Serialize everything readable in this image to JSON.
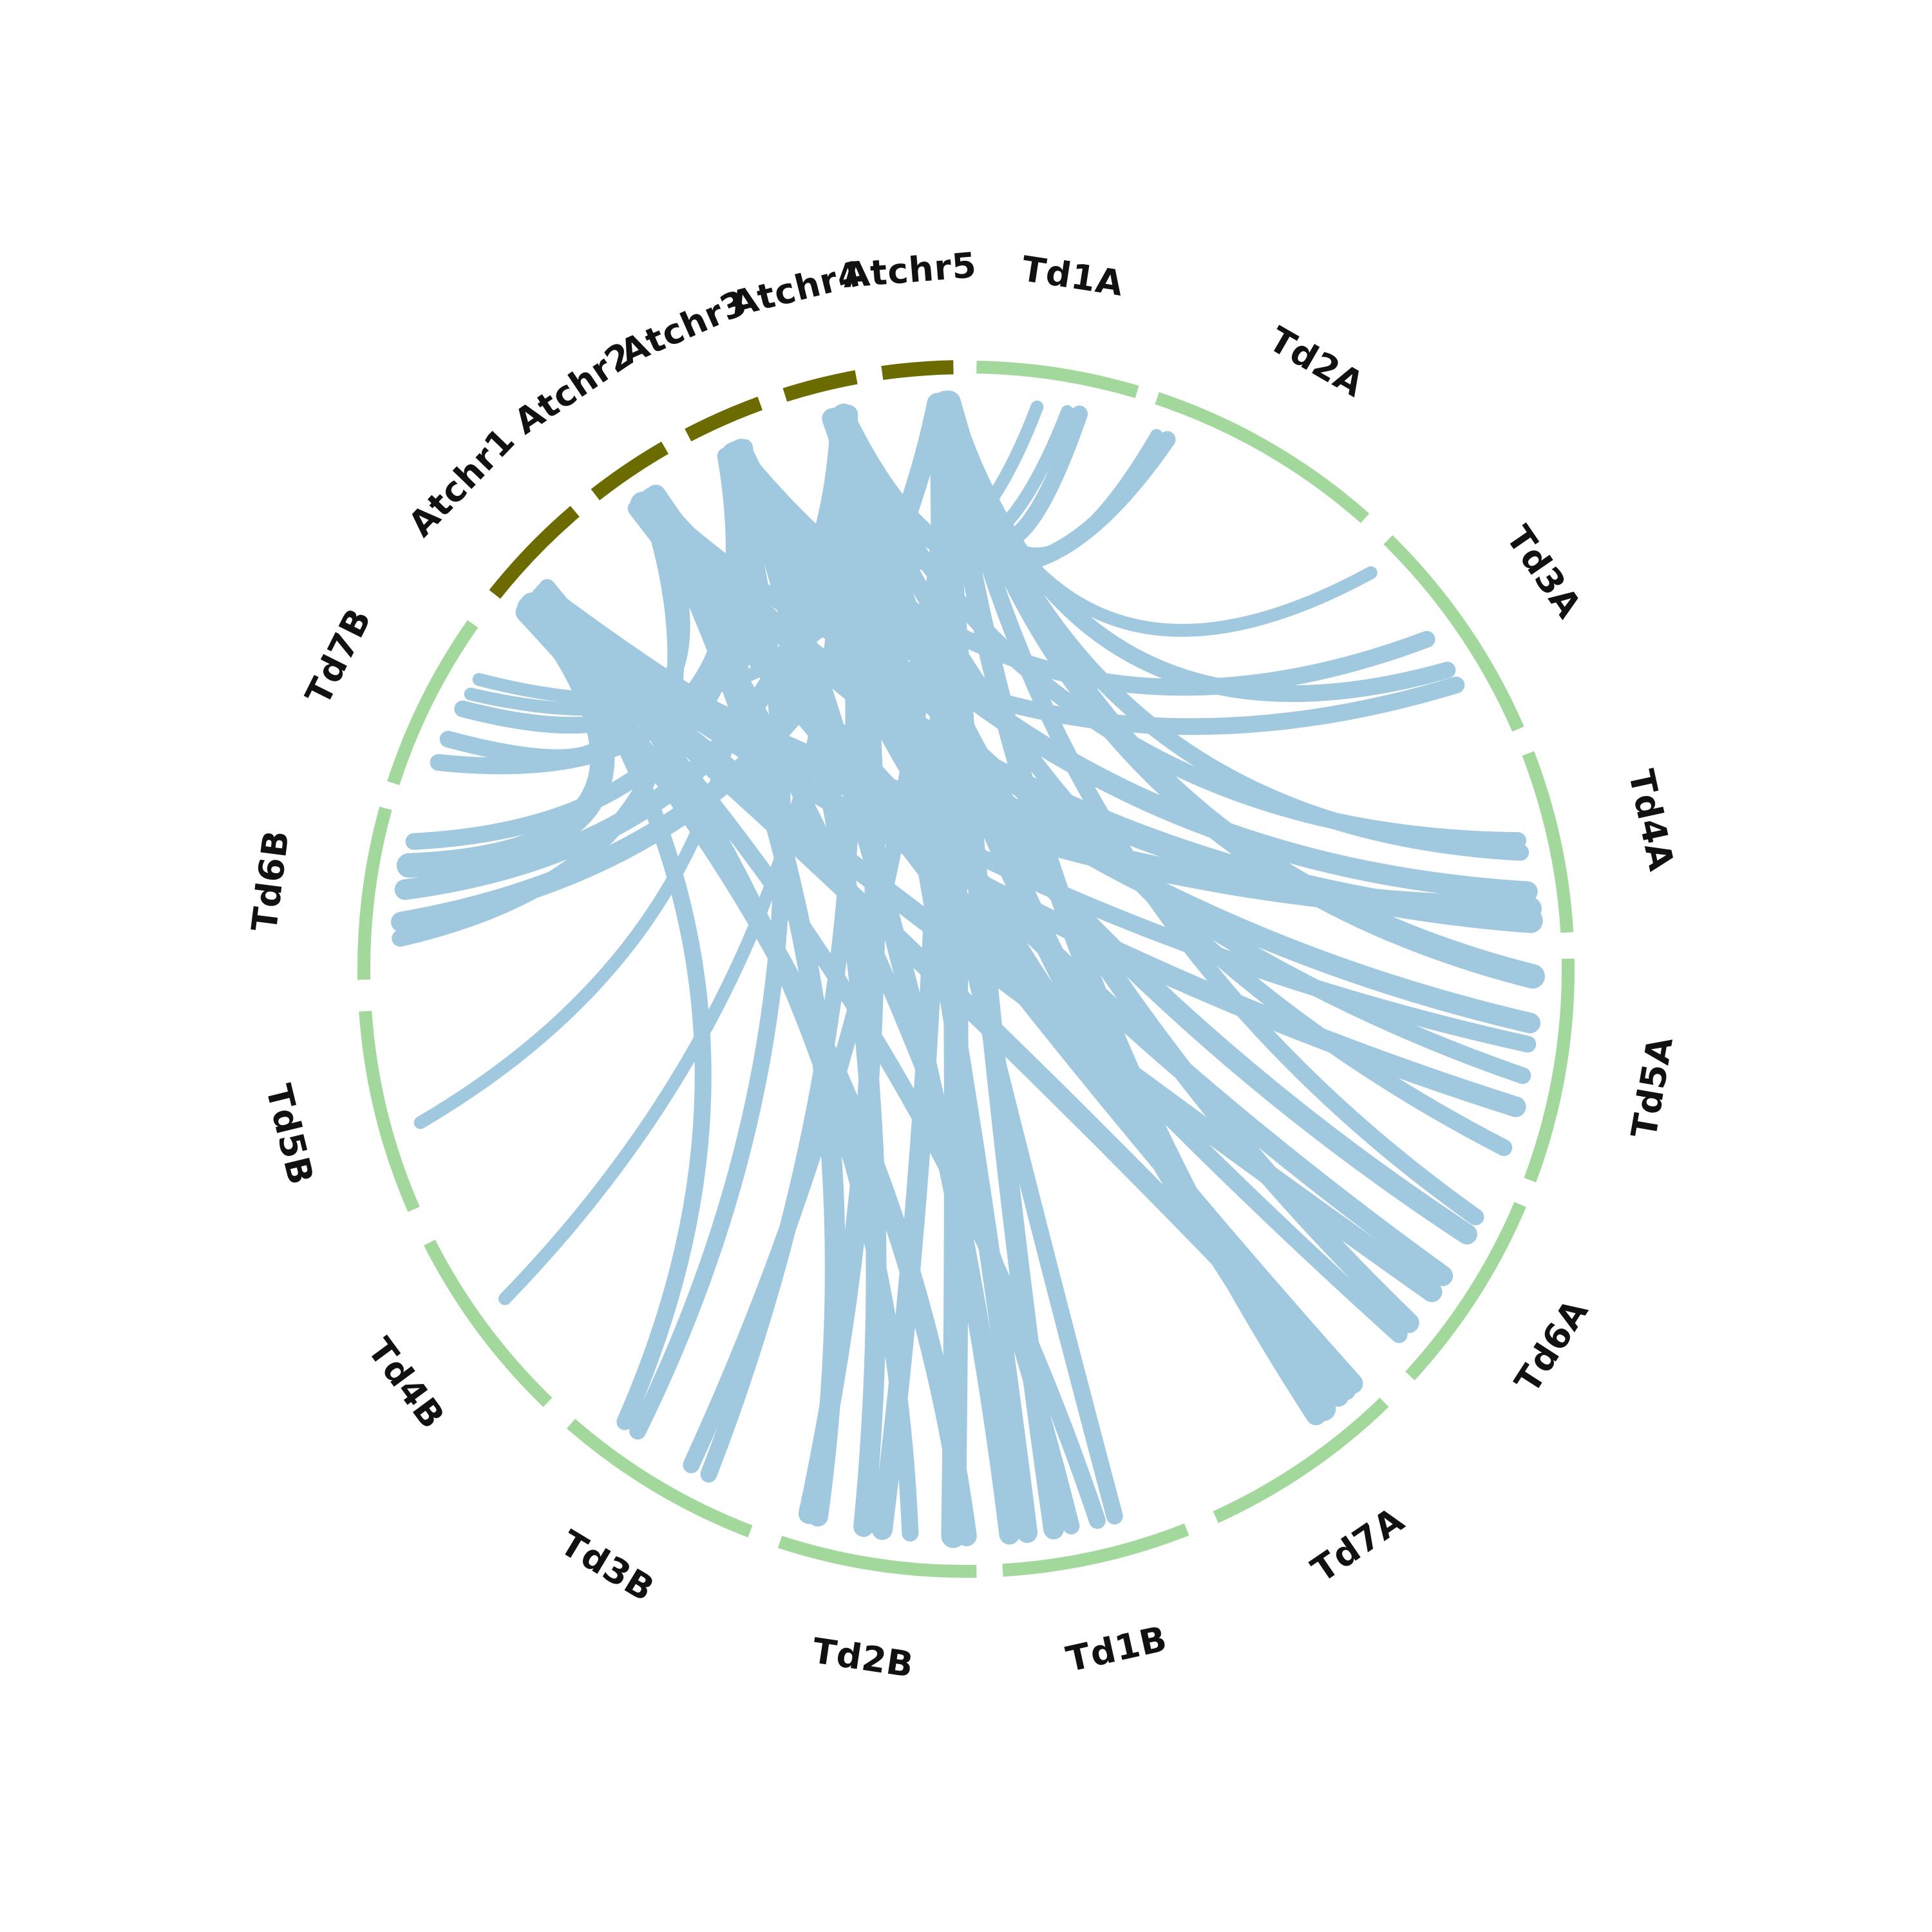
{
  "colors": {
    "at_track": "#6b6b00",
    "td_track": "#a3d89d",
    "link": "#a0c9e0",
    "label": "#111111"
  },
  "segments": [
    {
      "id": "Td1A",
      "label": "Td1A",
      "group": "td"
    },
    {
      "id": "Td2A",
      "label": "Td2A",
      "group": "td"
    },
    {
      "id": "Td3A",
      "label": "Td3A",
      "group": "td"
    },
    {
      "id": "Td4A",
      "label": "Td4A",
      "group": "td"
    },
    {
      "id": "Td5A",
      "label": "Td5A",
      "group": "td"
    },
    {
      "id": "Td6A",
      "label": "Td6A",
      "group": "td"
    },
    {
      "id": "Td7A",
      "label": "Td7A",
      "group": "td"
    },
    {
      "id": "Td1B",
      "label": "Td1B",
      "group": "td"
    },
    {
      "id": "Td2B",
      "label": "Td2B",
      "group": "td"
    },
    {
      "id": "Td3B",
      "label": "Td3B",
      "group": "td"
    },
    {
      "id": "Td4B",
      "label": "Td4B",
      "group": "td"
    },
    {
      "id": "Td5B",
      "label": "Td5B",
      "group": "td"
    },
    {
      "id": "Td6B",
      "label": "Td6B",
      "group": "td"
    },
    {
      "id": "Td7B",
      "label": "Td7B",
      "group": "td"
    },
    {
      "id": "Atchr1",
      "label": "Atchr1",
      "group": "at"
    },
    {
      "id": "Atchr2",
      "label": "Atchr2",
      "group": "at"
    },
    {
      "id": "Atchr3",
      "label": "Atchr3",
      "group": "at"
    },
    {
      "id": "Atchr4",
      "label": "Atchr4",
      "group": "at"
    },
    {
      "id": "Atchr5",
      "label": "Atchr5",
      "group": "at"
    }
  ],
  "links": [
    {
      "from": "Atchr5",
      "to": "Td1A",
      "f": 0.8,
      "t": 0.68,
      "w": 3
    },
    {
      "from": "Atchr5",
      "to": "Td2A",
      "f": 0.86,
      "t": 0.05,
      "w": 2
    },
    {
      "from": "Atchr5",
      "to": "Td3A",
      "f": 0.83,
      "t": 0.05,
      "w": 2
    },
    {
      "from": "Atchr5",
      "to": "Td4A",
      "f": 0.9,
      "t": 0.52,
      "w": 3
    },
    {
      "from": "Atchr5",
      "to": "Td5A",
      "f": 0.92,
      "t": 0.08,
      "w": 5
    },
    {
      "from": "Atchr5",
      "to": "Td6A",
      "f": 0.88,
      "t": 0.15,
      "w": 3
    },
    {
      "from": "Atchr5",
      "to": "Td7A",
      "f": 0.85,
      "t": 0.3,
      "w": 4
    },
    {
      "from": "Atchr5",
      "to": "Td1B",
      "f": 0.82,
      "t": 0.7,
      "w": 4
    },
    {
      "from": "Atchr5",
      "to": "Td2B",
      "f": 0.87,
      "t": 0.12,
      "w": 5
    },
    {
      "from": "Atchr5",
      "to": "Td3B",
      "f": 0.91,
      "t": 0.4,
      "w": 3
    },
    {
      "from": "Atchr5",
      "to": "Td7B",
      "f": 0.84,
      "t": 0.75,
      "w": 2
    },
    {
      "from": "Atchr5",
      "to": "Td3A",
      "f": 0.95,
      "t": 0.62,
      "w": 3
    },
    {
      "from": "Atchr4",
      "to": "Td1A",
      "f": 0.7,
      "t": 0.6,
      "w": 2
    },
    {
      "from": "Atchr4",
      "to": "Td2A",
      "f": 0.75,
      "t": 0.1,
      "w": 3
    },
    {
      "from": "Atchr4",
      "to": "Td4A",
      "f": 0.6,
      "t": 0.45,
      "w": 3
    },
    {
      "from": "Atchr4",
      "to": "Td5A",
      "f": 0.65,
      "t": 0.9,
      "w": 3
    },
    {
      "from": "Atchr4",
      "to": "Td6A",
      "f": 0.55,
      "t": 0.8,
      "w": 4
    },
    {
      "from": "Atchr4",
      "to": "Td7A",
      "f": 0.72,
      "t": 0.25,
      "w": 5
    },
    {
      "from": "Atchr4",
      "to": "Td1B",
      "f": 0.66,
      "t": 0.85,
      "w": 4
    },
    {
      "from": "Atchr4",
      "to": "Td2B",
      "f": 0.62,
      "t": 0.9,
      "w": 4
    },
    {
      "from": "Atchr4",
      "to": "Td3B",
      "f": 0.58,
      "t": 0.3,
      "w": 3
    },
    {
      "from": "Atchr4",
      "to": "Td4B",
      "f": 0.68,
      "t": 0.55,
      "w": 2
    },
    {
      "from": "Atchr3",
      "to": "Td3A",
      "f": 0.5,
      "t": 0.45,
      "w": 3
    },
    {
      "from": "Atchr3",
      "to": "Td4A",
      "f": 0.45,
      "t": 0.75,
      "w": 4
    },
    {
      "from": "Atchr3",
      "to": "Td5A",
      "f": 0.4,
      "t": 0.55,
      "w": 3
    },
    {
      "from": "Atchr3",
      "to": "Td6A",
      "f": 0.42,
      "t": 0.25,
      "w": 4
    },
    {
      "from": "Atchr3",
      "to": "Td7A",
      "f": 0.55,
      "t": 0.15,
      "w": 4
    },
    {
      "from": "Atchr3",
      "to": "Td1B",
      "f": 0.48,
      "t": 0.95,
      "w": 4
    },
    {
      "from": "Atchr3",
      "to": "Td2B",
      "f": 0.52,
      "t": 0.6,
      "w": 4
    },
    {
      "from": "Atchr3",
      "to": "Td3B",
      "f": 0.38,
      "t": 0.72,
      "w": 3
    },
    {
      "from": "Atchr3",
      "to": "Td5B",
      "f": 0.46,
      "t": 0.4,
      "w": 2
    },
    {
      "from": "Atchr2",
      "to": "Td3A",
      "f": 0.5,
      "t": 0.7,
      "w": 3
    },
    {
      "from": "Atchr2",
      "to": "Td4A",
      "f": 0.4,
      "t": 0.92,
      "w": 5
    },
    {
      "from": "Atchr2",
      "to": "Td5A",
      "f": 0.55,
      "t": 0.3,
      "w": 4
    },
    {
      "from": "Atchr2",
      "to": "Td6A",
      "f": 0.45,
      "t": 0.5,
      "w": 4
    },
    {
      "from": "Atchr2",
      "to": "Td7A",
      "f": 0.6,
      "t": 0.05,
      "w": 4
    },
    {
      "from": "Atchr2",
      "to": "Td1B",
      "f": 0.35,
      "t": 0.6,
      "w": 3
    },
    {
      "from": "Atchr2",
      "to": "Td2B",
      "f": 0.52,
      "t": 0.85,
      "w": 4
    },
    {
      "from": "Atchr2",
      "to": "Td6B",
      "f": 0.48,
      "t": 0.25,
      "w": 3
    },
    {
      "from": "Atchr1",
      "to": "Td4A",
      "f": 0.1,
      "t": 0.85,
      "w": 5
    },
    {
      "from": "Atchr1",
      "to": "Td5A",
      "f": 0.15,
      "t": 0.7,
      "w": 4
    },
    {
      "from": "Atchr1",
      "to": "Td6A",
      "f": 0.08,
      "t": 0.6,
      "w": 4
    },
    {
      "from": "Atchr1",
      "to": "Td7A",
      "f": 0.12,
      "t": 0.1,
      "w": 4
    },
    {
      "from": "Atchr1",
      "to": "Td1B",
      "f": 0.18,
      "t": 0.45,
      "w": 3
    },
    {
      "from": "Atchr1",
      "to": "Td2B",
      "f": 0.05,
      "t": 0.05,
      "w": 4
    },
    {
      "from": "Atchr1",
      "to": "Td3B",
      "f": 0.2,
      "t": 0.8,
      "w": 3
    },
    {
      "from": "Atchr1",
      "to": "Td6B",
      "f": 0.14,
      "t": 0.7,
      "w": 5
    },
    {
      "from": "Atchr1",
      "to": "Td7B",
      "f": 0.25,
      "t": 0.35,
      "w": 3
    },
    {
      "from": "Atchr5",
      "to": "Td6B",
      "f": 0.75,
      "t": 0.35,
      "w": 4
    },
    {
      "from": "Atchr4",
      "to": "Td6B",
      "f": 0.78,
      "t": 0.55,
      "w": 4
    },
    {
      "from": "Atchr3",
      "to": "Td6B",
      "f": 0.6,
      "t": 0.85,
      "w": 3
    },
    {
      "from": "Atchr2",
      "to": "Td7B",
      "f": 0.55,
      "t": 0.55,
      "w": 3
    },
    {
      "from": "Atchr3",
      "to": "Td7B",
      "f": 0.32,
      "t": 0.2,
      "w": 3
    },
    {
      "from": "Atchr4",
      "to": "Td7B",
      "f": 0.62,
      "t": 0.65,
      "w": 2
    },
    {
      "from": "Atchr1",
      "to": "Td5A",
      "f": 0.3,
      "t": 0.4,
      "w": 3
    },
    {
      "from": "Atchr5",
      "to": "Td2B",
      "f": 0.78,
      "t": 0.5,
      "w": 4
    },
    {
      "from": "Atchr4",
      "to": "Td1B",
      "f": 0.7,
      "t": 0.35,
      "w": 3
    },
    {
      "from": "Atchr2",
      "to": "Td6A",
      "f": 0.3,
      "t": 0.88,
      "w": 3
    },
    {
      "from": "Atchr1",
      "to": "Td2B",
      "f": 0.35,
      "t": 0.35,
      "w": 3
    },
    {
      "from": "Atchr3",
      "to": "Td1A",
      "f": 0.35,
      "t": 0.4,
      "w": 2
    }
  ]
}
